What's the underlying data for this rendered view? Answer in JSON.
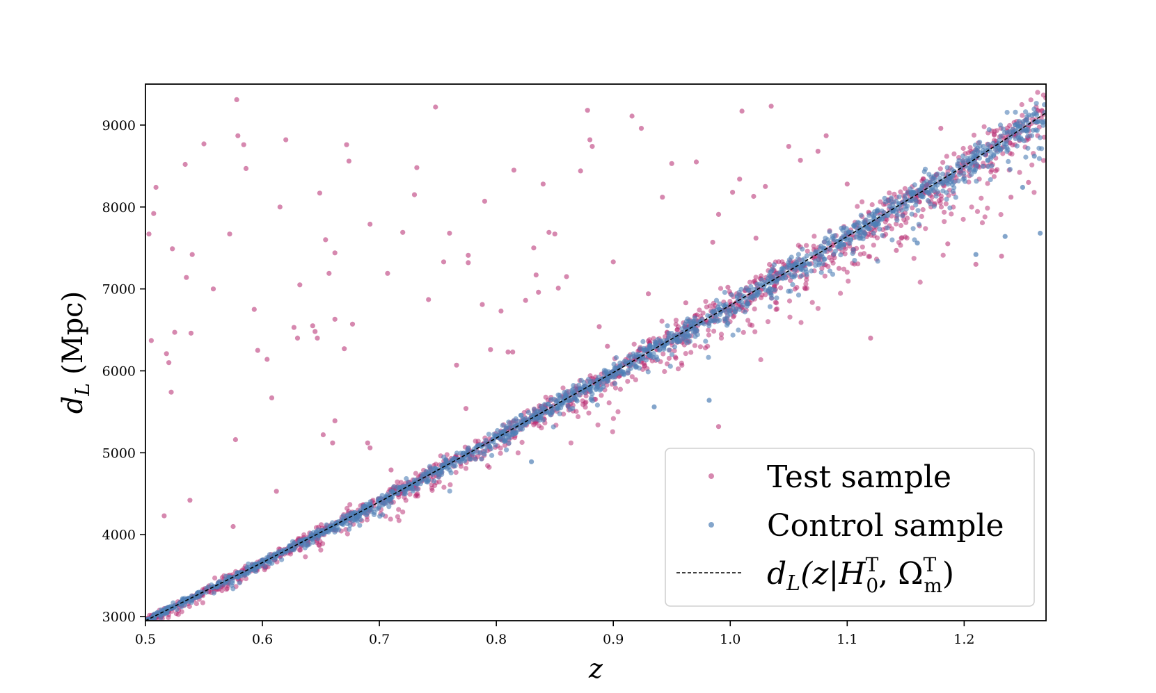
{
  "chart_data": {
    "type": "scatter",
    "title": "",
    "xlabel": "z",
    "ylabel_main": "d",
    "ylabel_sub": "L",
    "ylabel_unit": "(Mpc)",
    "xlim": [
      0.5,
      1.27
    ],
    "ylim": [
      2950,
      9500
    ],
    "x_ticks": [
      0.5,
      0.6,
      0.7,
      0.8,
      0.9,
      1.0,
      1.1,
      1.2
    ],
    "x_tick_labels": [
      "0.5",
      "0.6",
      "0.7",
      "0.8",
      "0.9",
      "1.0",
      "1.1",
      "1.2"
    ],
    "y_ticks": [
      3000,
      4000,
      5000,
      6000,
      7000,
      8000,
      9000
    ],
    "y_tick_labels": [
      "3000",
      "4000",
      "5000",
      "6000",
      "7000",
      "8000",
      "9000"
    ],
    "grid": false,
    "legend_position": "lower-right",
    "series": [
      {
        "name": "Test sample",
        "color": "#b5266e",
        "marker": "circle",
        "trend": [
          [
            0.5,
            2950
          ],
          [
            0.6,
            3660
          ],
          [
            0.7,
            4400
          ],
          [
            0.8,
            5180
          ],
          [
            0.9,
            5980
          ],
          [
            1.0,
            6800
          ],
          [
            1.1,
            7640
          ],
          [
            1.2,
            8500
          ],
          [
            1.27,
            9150
          ]
        ],
        "outliers": [
          [
            0.503,
            7670
          ],
          [
            0.505,
            6370
          ],
          [
            0.507,
            7920
          ],
          [
            0.509,
            8240
          ],
          [
            0.516,
            4230
          ],
          [
            0.518,
            6210
          ],
          [
            0.52,
            6100
          ],
          [
            0.522,
            5740
          ],
          [
            0.523,
            7490
          ],
          [
            0.525,
            6470
          ],
          [
            0.534,
            8520
          ],
          [
            0.535,
            7140
          ],
          [
            0.538,
            4420
          ],
          [
            0.539,
            6460
          ],
          [
            0.54,
            7420
          ],
          [
            0.55,
            8770
          ],
          [
            0.558,
            7000
          ],
          [
            0.572,
            7670
          ],
          [
            0.575,
            4100
          ],
          [
            0.577,
            5160
          ],
          [
            0.578,
            9310
          ],
          [
            0.579,
            8870
          ],
          [
            0.584,
            8760
          ],
          [
            0.586,
            8470
          ],
          [
            0.593,
            6750
          ],
          [
            0.596,
            6250
          ],
          [
            0.604,
            6140
          ],
          [
            0.608,
            5670
          ],
          [
            0.612,
            4530
          ],
          [
            0.615,
            8000
          ],
          [
            0.62,
            8820
          ],
          [
            0.627,
            6530
          ],
          [
            0.63,
            6400
          ],
          [
            0.632,
            7050
          ],
          [
            0.643,
            6550
          ],
          [
            0.645,
            6480
          ],
          [
            0.647,
            6400
          ],
          [
            0.649,
            8170
          ],
          [
            0.652,
            5220
          ],
          [
            0.654,
            7600
          ],
          [
            0.657,
            7190
          ],
          [
            0.66,
            5120
          ],
          [
            0.662,
            6630
          ],
          [
            0.662,
            7440
          ],
          [
            0.662,
            5390
          ],
          [
            0.67,
            6270
          ],
          [
            0.672,
            8760
          ],
          [
            0.674,
            8560
          ],
          [
            0.677,
            6570
          ],
          [
            0.682,
            4220
          ],
          [
            0.69,
            5120
          ],
          [
            0.692,
            5060
          ],
          [
            0.692,
            7790
          ],
          [
            0.707,
            7190
          ],
          [
            0.71,
            4790
          ],
          [
            0.72,
            7690
          ],
          [
            0.73,
            8150
          ],
          [
            0.732,
            8480
          ],
          [
            0.742,
            6870
          ],
          [
            0.748,
            9220
          ],
          [
            0.755,
            7330
          ],
          [
            0.76,
            7680
          ],
          [
            0.766,
            6070
          ],
          [
            0.774,
            5540
          ],
          [
            0.776,
            7410
          ],
          [
            0.776,
            7320
          ],
          [
            0.788,
            6810
          ],
          [
            0.79,
            8070
          ],
          [
            0.795,
            6260
          ],
          [
            0.804,
            6730
          ],
          [
            0.81,
            6230
          ],
          [
            0.814,
            6230
          ],
          [
            0.815,
            8450
          ],
          [
            0.825,
            6860
          ],
          [
            0.832,
            7500
          ],
          [
            0.834,
            7170
          ],
          [
            0.836,
            6960
          ],
          [
            0.84,
            8280
          ],
          [
            0.845,
            7690
          ],
          [
            0.85,
            7670
          ],
          [
            0.853,
            7010
          ],
          [
            0.86,
            7150
          ],
          [
            0.872,
            8440
          ],
          [
            0.878,
            9180
          ],
          [
            0.88,
            8820
          ],
          [
            0.882,
            8740
          ],
          [
            0.888,
            6540
          ],
          [
            0.895,
            6300
          ],
          [
            0.9,
            7330
          ],
          [
            0.916,
            9110
          ],
          [
            0.924,
            8960
          ],
          [
            0.93,
            6940
          ],
          [
            0.942,
            8120
          ],
          [
            0.95,
            8530
          ],
          [
            0.962,
            6830
          ],
          [
            0.971,
            8550
          ],
          [
            0.985,
            7570
          ],
          [
            0.99,
            7910
          ],
          [
            0.99,
            5320
          ],
          [
            0.998,
            7020
          ],
          [
            1.002,
            8180
          ],
          [
            1.008,
            8340
          ],
          [
            1.01,
            9170
          ],
          [
            1.02,
            8130
          ],
          [
            1.022,
            7620
          ],
          [
            1.03,
            8250
          ],
          [
            1.035,
            9230
          ],
          [
            1.05,
            8740
          ],
          [
            1.06,
            8570
          ],
          [
            1.075,
            8680
          ],
          [
            1.082,
            8870
          ],
          [
            1.093,
            7250
          ],
          [
            1.1,
            8280
          ],
          [
            1.12,
            6400
          ],
          [
            1.142,
            7470
          ],
          [
            1.164,
            8320
          ],
          [
            1.18,
            8960
          ],
          [
            1.186,
            7550
          ],
          [
            1.21,
            7300
          ],
          [
            1.232,
            7400
          ],
          [
            1.24,
            8120
          ],
          [
            1.255,
            8300
          ]
        ]
      },
      {
        "name": "Control sample",
        "color": "#4f7fb5",
        "marker": "circle",
        "trend": [
          [
            0.5,
            2950
          ],
          [
            0.6,
            3660
          ],
          [
            0.7,
            4400
          ],
          [
            0.8,
            5180
          ],
          [
            0.9,
            5980
          ],
          [
            1.0,
            6800
          ],
          [
            1.1,
            7640
          ],
          [
            1.2,
            8500
          ],
          [
            1.27,
            9150
          ]
        ],
        "outliers": [
          [
            0.83,
            4890
          ],
          [
            0.935,
            5560
          ],
          [
            0.982,
            5640
          ],
          [
            0.998,
            6580
          ],
          [
            1.16,
            7560
          ],
          [
            1.21,
            7420
          ],
          [
            1.235,
            7640
          ],
          [
            1.265,
            7680
          ],
          [
            1.25,
            8240
          ],
          [
            1.26,
            8620
          ]
        ]
      },
      {
        "name": "d_L(z|H0^T, Ωm^T)",
        "color": "#000000",
        "linestyle": "dashed",
        "x": [
          0.5,
          0.6,
          0.7,
          0.8,
          0.9,
          1.0,
          1.1,
          1.2,
          1.27
        ],
        "y": [
          2950,
          3660,
          4400,
          5180,
          5980,
          6800,
          7640,
          8500,
          9150
        ]
      }
    ],
    "legend": {
      "test_label": "Test sample",
      "control_label": "Control sample",
      "model_label_prefix": "d",
      "model_label_sub_L": "L",
      "model_label_open": "(z|",
      "model_label_H": "H",
      "model_label_sub_0": "0",
      "model_label_sup_T": "T",
      "model_label_comma": ", ",
      "model_label_omega": "Ω",
      "model_label_sub_m": "m",
      "model_label_close": ")"
    }
  }
}
